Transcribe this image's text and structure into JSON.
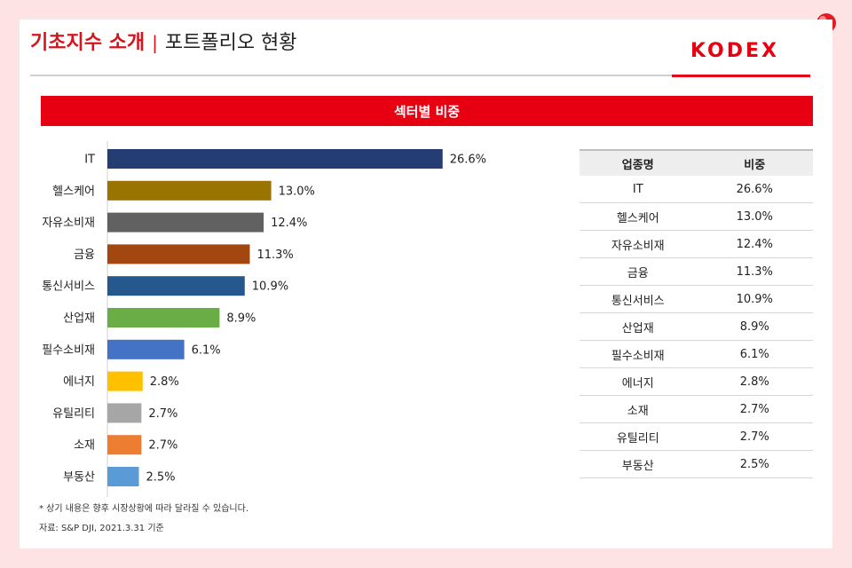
{
  "header": {
    "title_red": "기초지수 소개",
    "separator": "|",
    "title_rest": "포트폴리오 현황",
    "logo": "KODEX"
  },
  "banner": "섹터별 비중",
  "chart_data": {
    "type": "bar",
    "orientation": "horizontal",
    "categories": [
      "IT",
      "헬스케어",
      "자유소비재",
      "금융",
      "통신서비스",
      "산업재",
      "필수소비재",
      "에너지",
      "유틸리티",
      "소재",
      "부동산"
    ],
    "values": [
      26.6,
      13.0,
      12.4,
      11.3,
      10.9,
      8.9,
      6.1,
      2.8,
      2.7,
      2.7,
      2.5
    ],
    "value_labels": [
      "26.6%",
      "13.0%",
      "12.4%",
      "11.3%",
      "10.9%",
      "8.9%",
      "6.1%",
      "2.8%",
      "2.7%",
      "2.7%",
      "2.5%"
    ],
    "colors": [
      "#243d72",
      "#9a7400",
      "#616161",
      "#a34711",
      "#25588d",
      "#6aac46",
      "#4472c4",
      "#ffc000",
      "#a6a6a6",
      "#ed7d31",
      "#5b9bd5"
    ],
    "xlim": [
      0,
      30
    ],
    "grid": false,
    "legend": "none"
  },
  "table": {
    "headers": [
      "업종명",
      "비중"
    ],
    "rows": [
      [
        "IT",
        "26.6%"
      ],
      [
        "헬스케어",
        "13.0%"
      ],
      [
        "자유소비재",
        "12.4%"
      ],
      [
        "금융",
        "11.3%"
      ],
      [
        "통신서비스",
        "10.9%"
      ],
      [
        "산업재",
        "8.9%"
      ],
      [
        "필수소비재",
        "6.1%"
      ],
      [
        "에너지",
        "2.8%"
      ],
      [
        "소재",
        "2.7%"
      ],
      [
        "유틸리티",
        "2.7%"
      ],
      [
        "부동산",
        "2.5%"
      ]
    ]
  },
  "footnote": "* 상기 내용은 향후 시장상황에 따라 달라질 수 있습니다.",
  "source": "자료: S&P DJI, 2021.3.31 기준",
  "colors": {
    "accent": "#e60012",
    "background": "#fde3e3"
  }
}
